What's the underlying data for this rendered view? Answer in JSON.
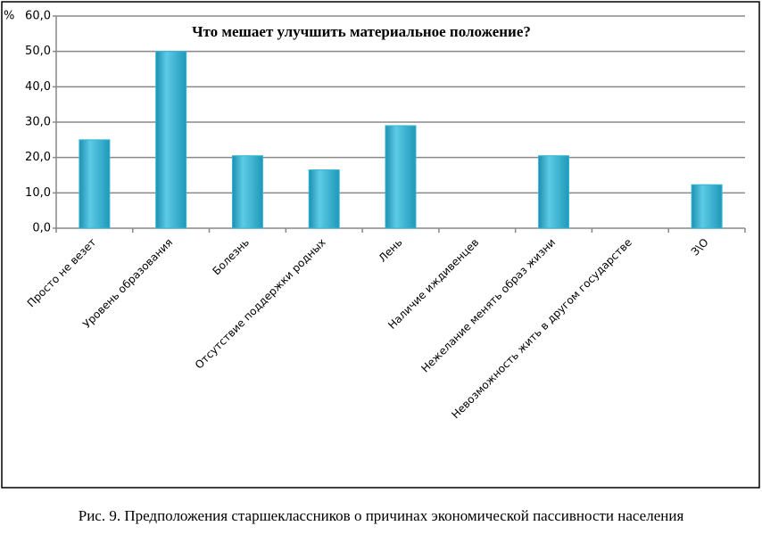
{
  "chart_data": {
    "type": "bar",
    "title": "Что мешает улучшить материальное положение?",
    "y_label": "%",
    "categories": [
      "Просто не везет",
      "Уровень образования",
      "Болезнь",
      "Отсутствие поддержки родных",
      "Лень",
      "Наличие иждивенцев",
      "Нежелание менять образ жизни",
      "Невозможность жить в другом государстве",
      "З\\О"
    ],
    "values": [
      25,
      50,
      20.5,
      16.5,
      29,
      0,
      20.5,
      0,
      12.3
    ],
    "color": "#35b6d6",
    "ylim": [
      0,
      60
    ],
    "yticks": [
      {
        "value": 0,
        "label": "0,0"
      },
      {
        "value": 10,
        "label": "10,0"
      },
      {
        "value": 20,
        "label": "20,0"
      },
      {
        "value": 30,
        "label": "30,0"
      },
      {
        "value": 40,
        "label": "40,0"
      },
      {
        "value": 50,
        "label": "50,0"
      },
      {
        "value": 60,
        "label": "60,0"
      }
    ],
    "grid": true
  },
  "caption": "Рис. 9. Предположения старшеклассников о причинах экономической пассивности населения"
}
